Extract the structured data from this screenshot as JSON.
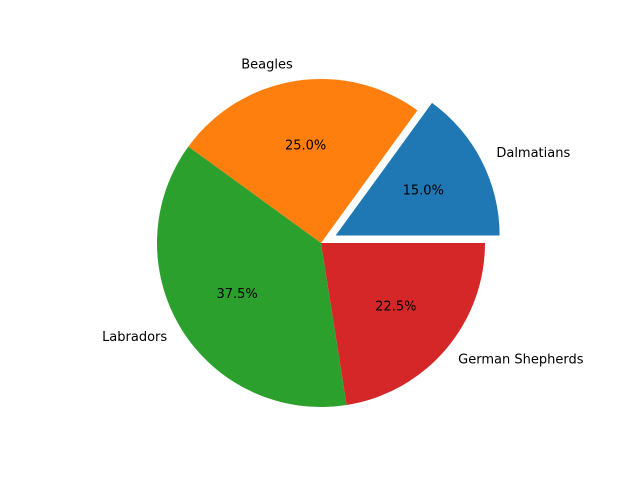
{
  "chart_data": {
    "type": "pie",
    "categories": [
      "Dalmatians",
      "Beagles",
      "Labradors",
      "German Shepherds"
    ],
    "values": [
      15,
      25,
      37.5,
      22.5
    ],
    "value_labels": [
      "15.0%",
      "25.0%",
      "37.5%",
      "22.5%"
    ],
    "colors": [
      "#1f77b4",
      "#ff7f0e",
      "#2ca02c",
      "#d62728"
    ],
    "explode": [
      0.1,
      0,
      0,
      0
    ]
  }
}
